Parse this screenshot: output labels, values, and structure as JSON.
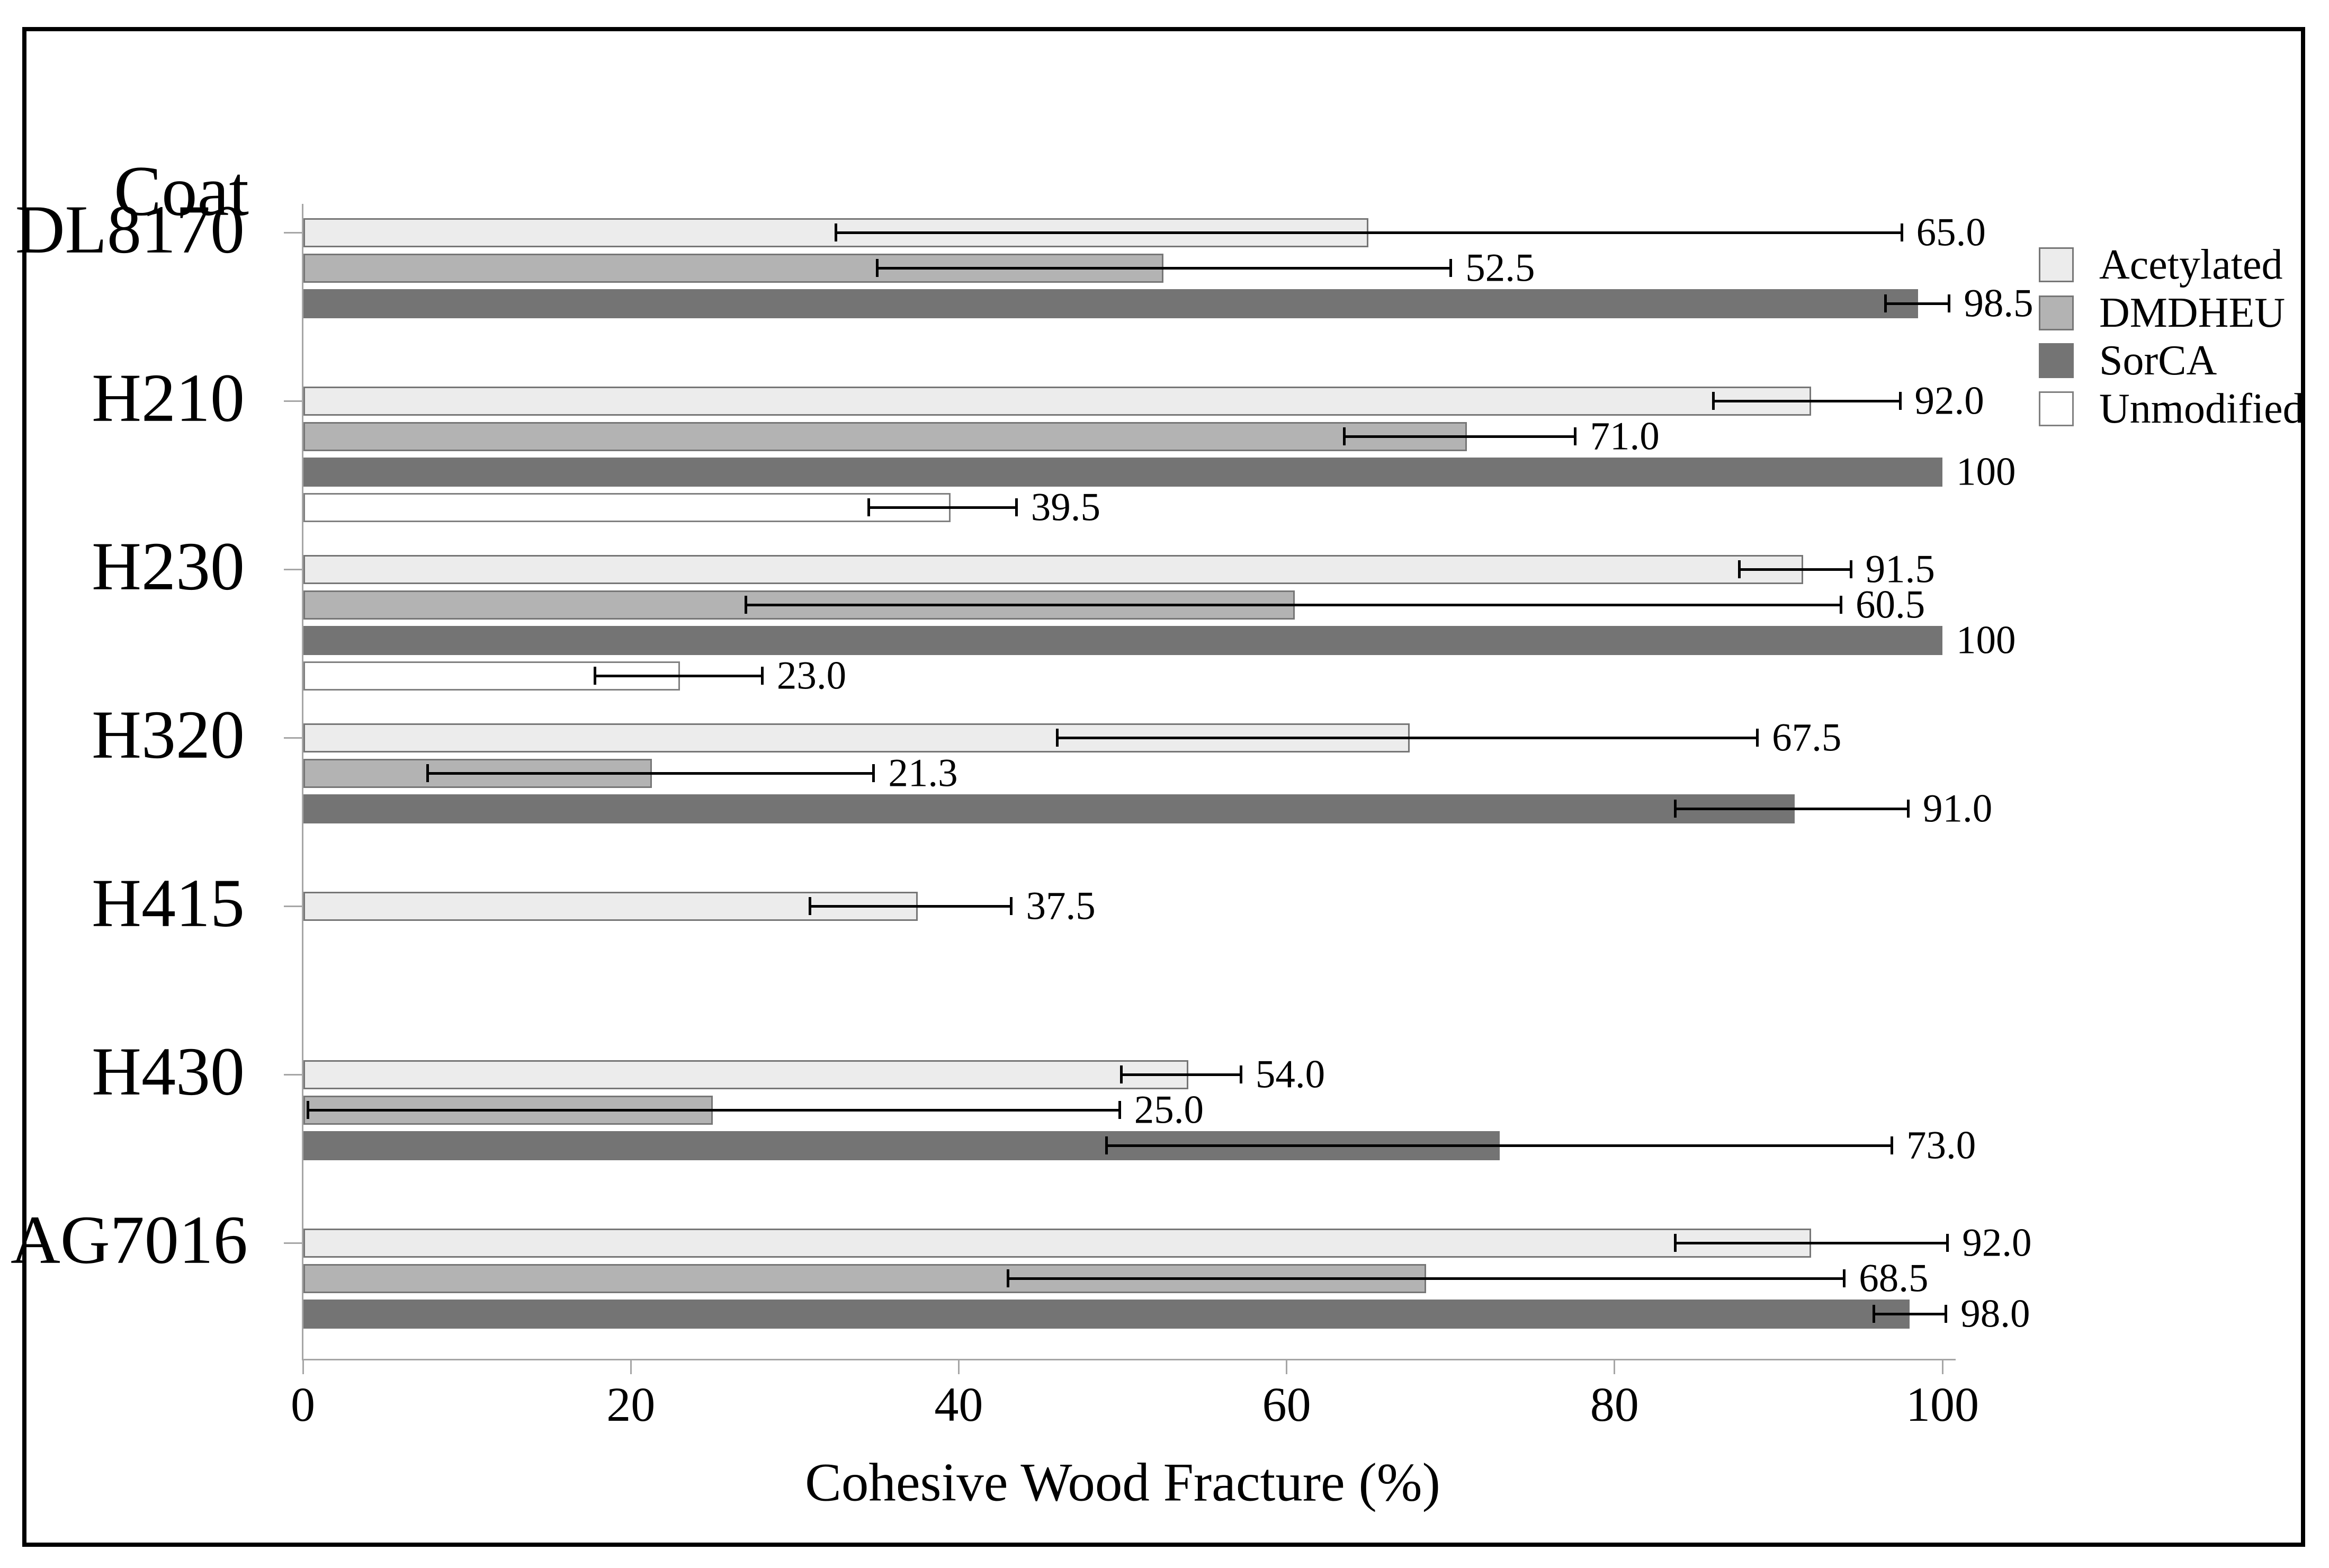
{
  "figure": {
    "background": "#ffffff",
    "frame_color": "#000000"
  },
  "colors": {
    "axis": "#a6a6a6",
    "error_bar": "#000000",
    "text": "#000000",
    "acetylated_fill": "#ececec",
    "dmdheu_fill": "#b3b3b3",
    "sorca_fill": "#747474",
    "unmodified_fill": "#ffffff",
    "bar_border": "#767676"
  },
  "chart_data": {
    "type": "bar",
    "orientation": "horizontal",
    "xlabel": "Cohesive Wood Fracture (%)",
    "ylabel": "Coat",
    "xlim": [
      0,
      100
    ],
    "x_ticks": [
      0,
      20,
      40,
      60,
      80,
      100
    ],
    "x_tick_labels": [
      "0",
      "20",
      "40",
      "60",
      "80",
      "100"
    ],
    "grid": false,
    "error_bars": "two-sided with caps, value label at right whisker end",
    "series_names": [
      "Acetylated",
      "DMDHEU",
      "SorCA",
      "Unmodified"
    ],
    "legend": {
      "position": "right",
      "entries": [
        {
          "label": "Acetylated",
          "fill": "#ececec",
          "border": "#767676"
        },
        {
          "label": "DMDHEU",
          "fill": "#b3b3b3",
          "border": "#767676"
        },
        {
          "label": "SorCA",
          "fill": "#747474",
          "border": "#747474"
        },
        {
          "label": "Unmodified",
          "fill": "#ffffff",
          "border": "#808080"
        }
      ]
    },
    "groups": [
      {
        "label": "DL8170",
        "bars": [
          {
            "series": "Acetylated",
            "value": 65.0,
            "label": "65.0",
            "err_lo": 32.5,
            "err_hi": 97.5
          },
          {
            "series": "DMDHEU",
            "value": 52.5,
            "label": "52.5",
            "err_lo": 35.0,
            "err_hi": 70.0
          },
          {
            "series": "SorCA",
            "value": 98.5,
            "label": "98.5",
            "err_lo": 96.5,
            "err_hi": 100.4
          }
        ]
      },
      {
        "label": "H210",
        "bars": [
          {
            "series": "Acetylated",
            "value": 92.0,
            "label": "92.0",
            "err_lo": 86.0,
            "err_hi": 97.4
          },
          {
            "series": "DMDHEU",
            "value": 71.0,
            "label": "71.0",
            "err_lo": 63.5,
            "err_hi": 77.6
          },
          {
            "series": "SorCA",
            "value": 100,
            "label": "100",
            "err_lo": null,
            "err_hi": null
          },
          {
            "series": "Unmodified",
            "value": 39.5,
            "label": "39.5",
            "err_lo": 34.5,
            "err_hi": 43.5
          }
        ]
      },
      {
        "label": "H230",
        "bars": [
          {
            "series": "Acetylated",
            "value": 91.5,
            "label": "91.5",
            "err_lo": 87.6,
            "err_hi": 94.4
          },
          {
            "series": "DMDHEU",
            "value": 60.5,
            "label": "60.5",
            "err_lo": 27.0,
            "err_hi": 93.8
          },
          {
            "series": "SorCA",
            "value": 100,
            "label": "100",
            "err_lo": null,
            "err_hi": null
          },
          {
            "series": "Unmodified",
            "value": 23.0,
            "label": "23.0",
            "err_lo": 17.8,
            "err_hi": 28.0
          }
        ]
      },
      {
        "label": "H320",
        "bars": [
          {
            "series": "Acetylated",
            "value": 67.5,
            "label": "67.5",
            "err_lo": 46.0,
            "err_hi": 88.7
          },
          {
            "series": "DMDHEU",
            "value": 21.3,
            "label": "21.3",
            "err_lo": 7.6,
            "err_hi": 34.8
          },
          {
            "series": "SorCA",
            "value": 91.0,
            "label": "91.0",
            "err_lo": 83.7,
            "err_hi": 97.9
          }
        ]
      },
      {
        "label": "H415",
        "bars": [
          {
            "series": "Acetylated",
            "value": 37.5,
            "label": "37.5",
            "err_lo": 30.9,
            "err_hi": 43.2
          }
        ]
      },
      {
        "label": "H430",
        "bars": [
          {
            "series": "Acetylated",
            "value": 54.0,
            "label": "54.0",
            "err_lo": 49.9,
            "err_hi": 57.2
          },
          {
            "series": "DMDHEU",
            "value": 25.0,
            "label": "25.0",
            "err_lo": 0.3,
            "err_hi": 49.8
          },
          {
            "series": "SorCA",
            "value": 73.0,
            "label": "73.0",
            "err_lo": 49.0,
            "err_hi": 96.9
          }
        ]
      },
      {
        "label": "AG7016",
        "bars": [
          {
            "series": "Acetylated",
            "value": 92.0,
            "label": "92.0",
            "err_lo": 83.7,
            "err_hi": 100.3
          },
          {
            "series": "DMDHEU",
            "value": 68.5,
            "label": "68.5",
            "err_lo": 43.0,
            "err_hi": 94.0
          },
          {
            "series": "SorCA",
            "value": 98.0,
            "label": "98.0",
            "err_lo": 95.8,
            "err_hi": 100.2
          }
        ]
      }
    ]
  }
}
